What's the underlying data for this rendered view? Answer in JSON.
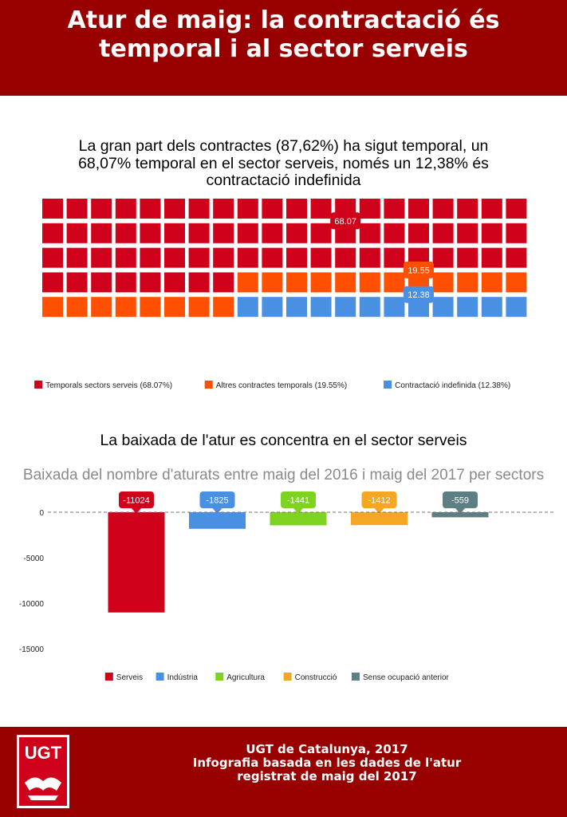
{
  "header": {
    "title_line1": "Atur de maig: la contractació és",
    "title_line2": "temporal i al sector serveis"
  },
  "waffle_section": {
    "title_line1": "La gran part dels contractes (87,62%) ha sigut temporal, un",
    "title_line2": "68,07% temporal en el sector serveis, només un 12,38% és",
    "title_line3": "contractació indefinida"
  },
  "bar_section": {
    "title": "La baixada de l'atur es concentra en el sector serveis",
    "subtitle": "Baixada del nombre d'aturats entre maig del 2016 i maig del 2017 per sectors"
  },
  "chart_data": [
    {
      "type": "waffle",
      "series": [
        {
          "name": "Temporals sectors serveis (68.07%)",
          "value": 68.07,
          "label": "68.07",
          "color": "#d0021b"
        },
        {
          "name": "Altres contractes temporals (19.55%)",
          "value": 19.55,
          "label": "19.55",
          "color": "#ff4f00"
        },
        {
          "name": "Contractació indefinida (12.38%)",
          "value": 12.38,
          "label": "12.38",
          "color": "#4a90e2"
        }
      ],
      "legend_position": "bottom"
    },
    {
      "type": "bar",
      "categories": [
        "Serveis",
        "Indústria",
        "Agricultura",
        "Construcció",
        "Sense ocupació anterior"
      ],
      "values": [
        -11024,
        -1825,
        -1441,
        -1412,
        -559
      ],
      "colors": [
        "#d0021b",
        "#4a90e2",
        "#7ed321",
        "#f5a623",
        "#5d7f83"
      ],
      "ylim": [
        -15000,
        0
      ],
      "yticks": [
        0,
        -5000,
        -10000,
        -15000
      ],
      "grid": false,
      "legend_position": "bottom"
    }
  ],
  "footer": {
    "line1": "UGT de Catalunya, 2017",
    "line2": "Infografia basada en les dades de l'atur",
    "line3": "registrat de maig del 2017",
    "logo_text": "UGT"
  }
}
